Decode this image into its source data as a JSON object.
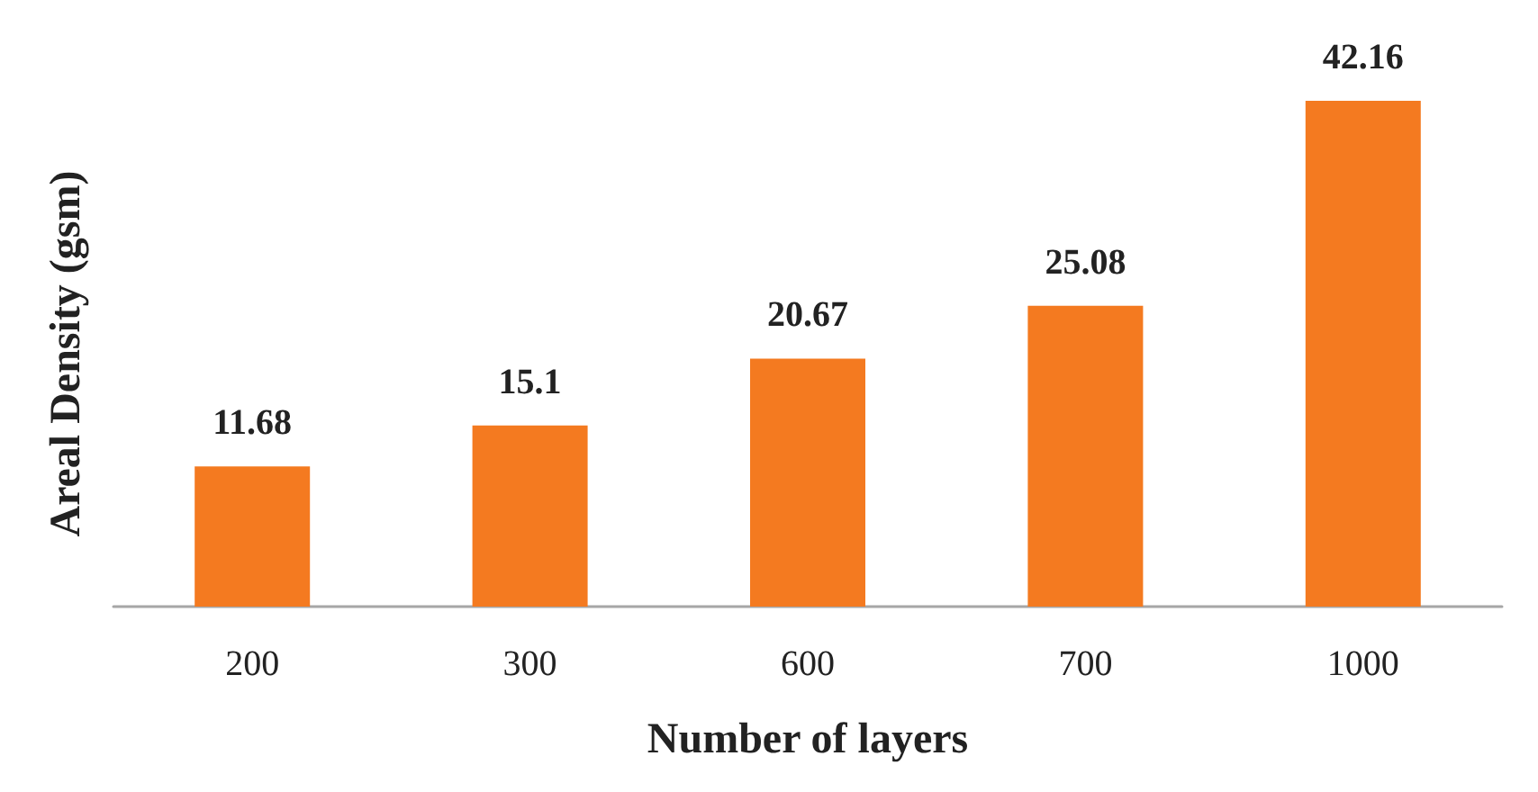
{
  "chart_data": {
    "type": "bar",
    "xlabel": "Number of layers",
    "ylabel": "Areal Density (gsm)",
    "categories": [
      "200",
      "300",
      "600",
      "700",
      "1000"
    ],
    "values": [
      11.68,
      15.1,
      20.67,
      25.08,
      42.16
    ],
    "color": "#f47a20",
    "data_labels": true
  }
}
